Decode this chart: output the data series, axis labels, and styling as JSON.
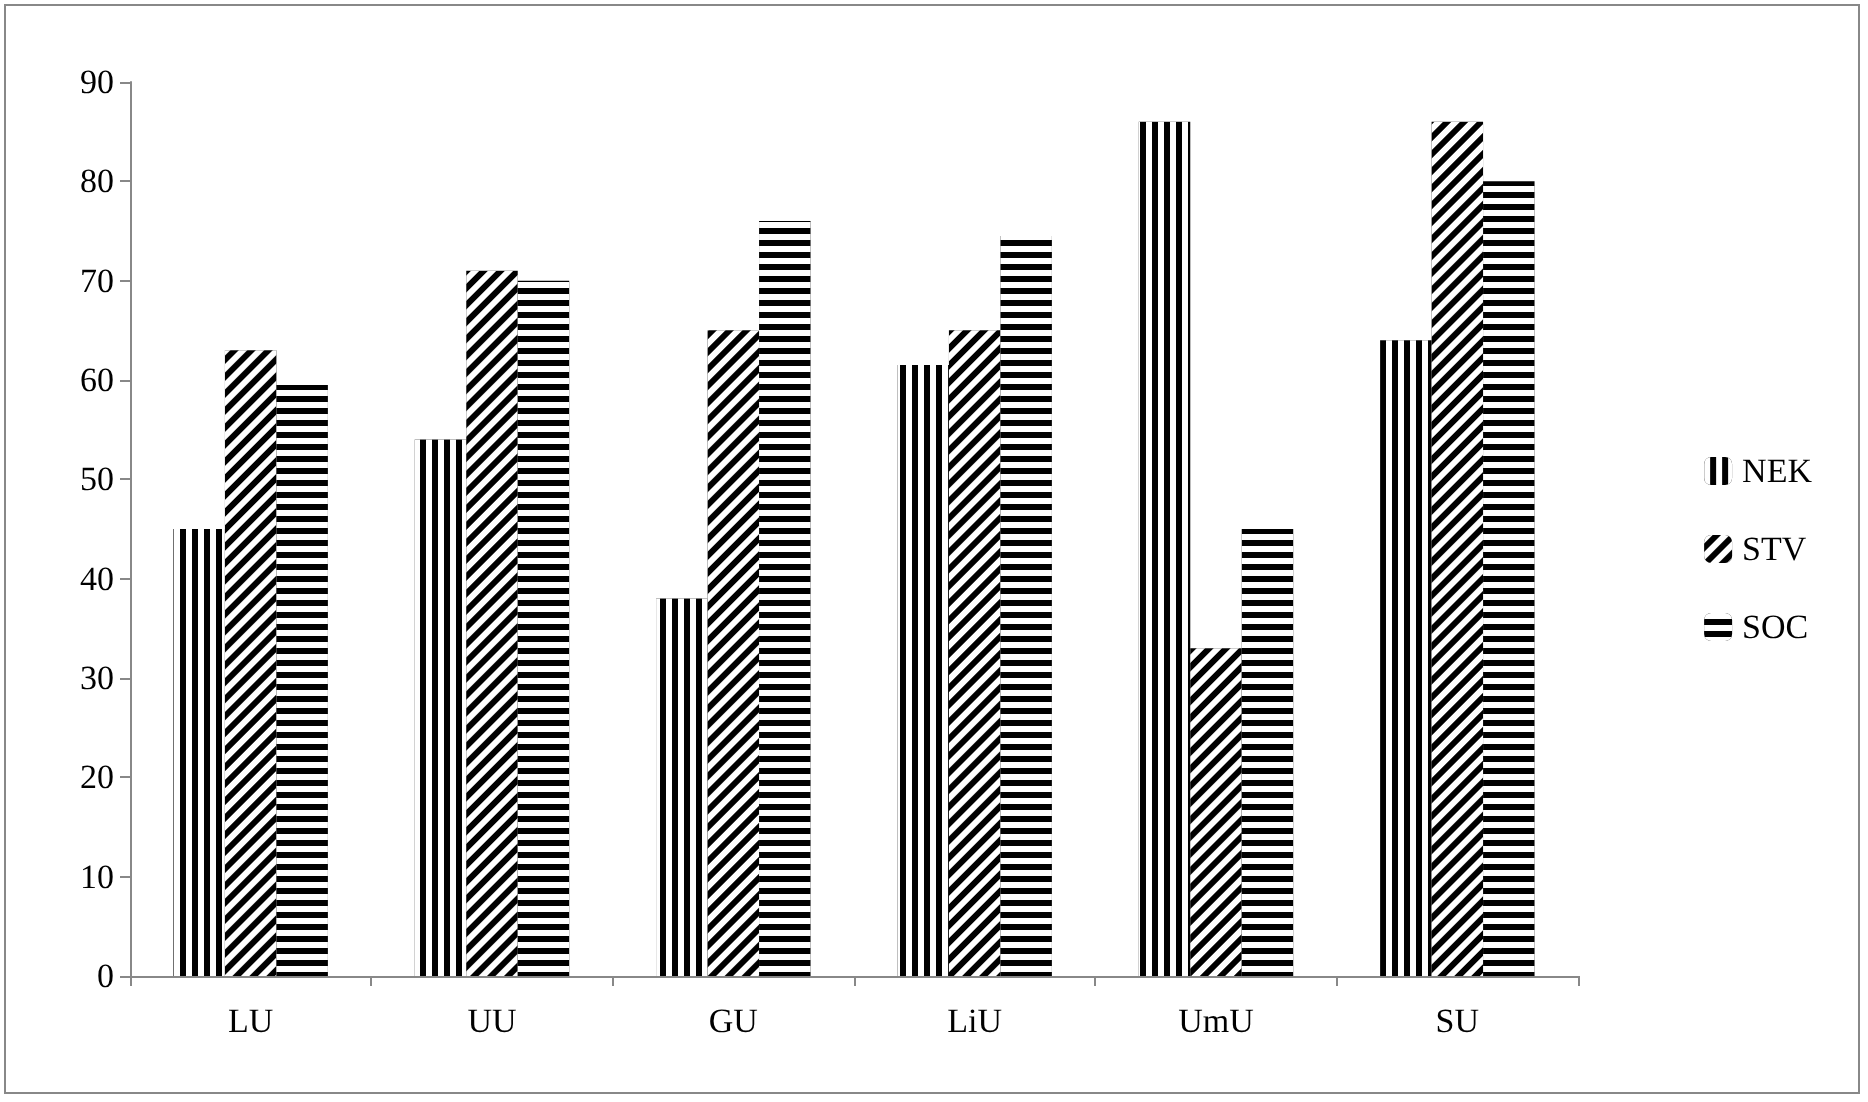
{
  "chart_data": {
    "type": "bar",
    "categories": [
      "LU",
      "UU",
      "GU",
      "LiU",
      "UmU",
      "SU"
    ],
    "series": [
      {
        "name": "NEK",
        "color": "#000000",
        "values": [
          45,
          54,
          38,
          61.5,
          86,
          64
        ]
      },
      {
        "name": "STV",
        "color": "#000000",
        "values": [
          63,
          71,
          65,
          65,
          33,
          86
        ]
      },
      {
        "name": "SOC",
        "color": "#000000",
        "values": [
          59.5,
          70,
          76,
          74.5,
          45,
          80
        ]
      }
    ],
    "ylim": [
      0,
      90
    ],
    "yticks": [
      0,
      10,
      20,
      30,
      40,
      50,
      60,
      70,
      80,
      90
    ],
    "grid": false,
    "legend": "right"
  }
}
